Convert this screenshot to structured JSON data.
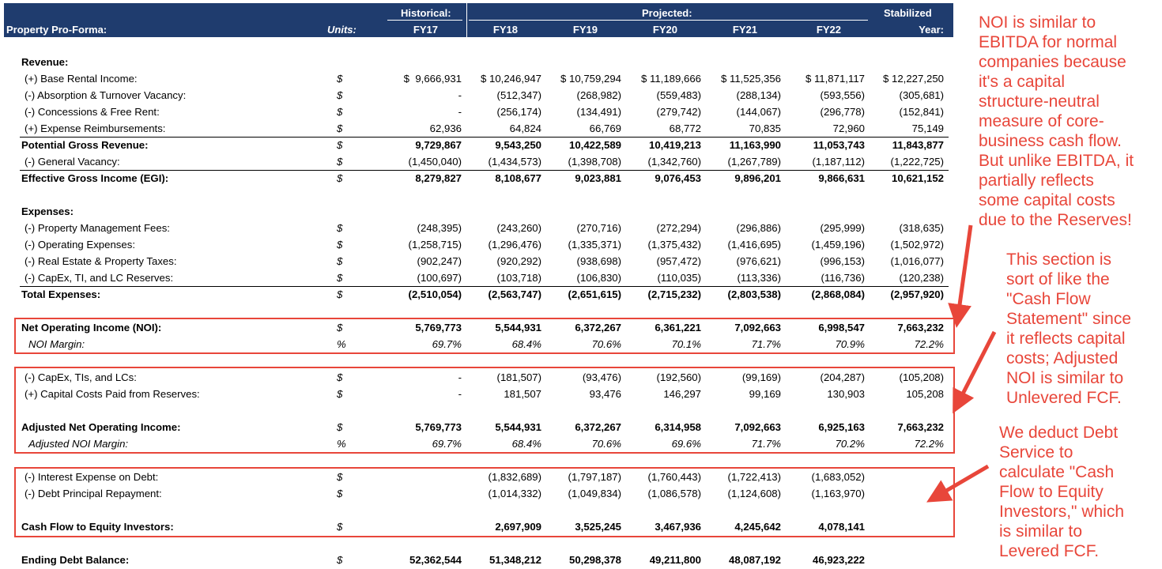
{
  "header": {
    "title": "Property Pro-Forma:",
    "units_label": "Units:",
    "historical_label": "Historical:",
    "projected_label": "Projected:",
    "stabilized_label": "Stabilized",
    "years": [
      "FY17",
      "FY18",
      "FY19",
      "FY20",
      "FY21",
      "FY22",
      "Year:"
    ]
  },
  "rows": [
    {
      "label": "Revenue:",
      "unit": "",
      "values": [],
      "style": "bold",
      "top": 68
    },
    {
      "label": "(+) Base Rental Income:",
      "unit": "$",
      "values": [
        "$  9,666,931",
        "$ 10,246,947",
        "$ 10,759,294",
        "$ 11,189,666",
        "$ 11,525,356",
        "$ 11,871,117",
        "$ 12,227,250"
      ],
      "style": "ind",
      "top": 89
    },
    {
      "label": "(-) Absorption & Turnover Vacancy:",
      "unit": "$",
      "values": [
        "-",
        "(512,347)",
        "(268,982)",
        "(559,483)",
        "(288,134)",
        "(593,556)",
        "(305,681)"
      ],
      "style": "ind",
      "top": 110
    },
    {
      "label": "(-) Concessions & Free Rent:",
      "unit": "$",
      "values": [
        "-",
        "(256,174)",
        "(134,491)",
        "(279,742)",
        "(144,067)",
        "(296,778)",
        "(152,841)"
      ],
      "style": "ind",
      "top": 131
    },
    {
      "label": "(+) Expense Reimbursements:",
      "unit": "$",
      "values": [
        "62,936",
        "64,824",
        "66,769",
        "68,772",
        "70,835",
        "72,960",
        "75,149"
      ],
      "style": "ind",
      "top": 152
    },
    {
      "label": "Potential Gross Revenue:",
      "unit": "$",
      "values": [
        "9,729,867",
        "9,543,250",
        "10,422,589",
        "10,419,213",
        "11,163,990",
        "11,053,743",
        "11,843,877"
      ],
      "style": "bold line",
      "top": 173
    },
    {
      "label": "(-) General Vacancy:",
      "unit": "$",
      "values": [
        "(1,450,040)",
        "(1,434,573)",
        "(1,398,708)",
        "(1,342,760)",
        "(1,267,789)",
        "(1,187,112)",
        "(1,222,725)"
      ],
      "style": "ind",
      "top": 194
    },
    {
      "label": "Effective Gross Income (EGI):",
      "unit": "$",
      "values": [
        "8,279,827",
        "8,108,677",
        "9,023,881",
        "9,076,453",
        "9,896,201",
        "9,866,631",
        "10,621,152"
      ],
      "style": "bold line",
      "top": 215
    },
    {
      "label": "Expenses:",
      "unit": "",
      "values": [],
      "style": "bold",
      "top": 257
    },
    {
      "label": "(-) Property Management Fees:",
      "unit": "$",
      "values": [
        "(248,395)",
        "(243,260)",
        "(270,716)",
        "(272,294)",
        "(296,886)",
        "(295,999)",
        "(318,635)"
      ],
      "style": "ind",
      "top": 278
    },
    {
      "label": "(-) Operating Expenses:",
      "unit": "$",
      "values": [
        "(1,258,715)",
        "(1,296,476)",
        "(1,335,371)",
        "(1,375,432)",
        "(1,416,695)",
        "(1,459,196)",
        "(1,502,972)"
      ],
      "style": "ind",
      "top": 299
    },
    {
      "label": "(-) Real Estate & Property Taxes:",
      "unit": "$",
      "values": [
        "(902,247)",
        "(920,292)",
        "(938,698)",
        "(957,472)",
        "(976,621)",
        "(996,153)",
        "(1,016,077)"
      ],
      "style": "ind",
      "top": 320
    },
    {
      "label": "(-) CapEx, TI, and LC Reserves:",
      "unit": "$",
      "values": [
        "(100,697)",
        "(103,718)",
        "(106,830)",
        "(110,035)",
        "(113,336)",
        "(116,736)",
        "(120,238)"
      ],
      "style": "ind",
      "top": 341
    },
    {
      "label": "Total Expenses:",
      "unit": "$",
      "values": [
        "(2,510,054)",
        "(2,563,747)",
        "(2,651,615)",
        "(2,715,232)",
        "(2,803,538)",
        "(2,868,084)",
        "(2,957,920)"
      ],
      "style": "bold line",
      "top": 362
    },
    {
      "label": "Net Operating Income (NOI):",
      "unit": "$",
      "values": [
        "5,769,773",
        "5,544,931",
        "6,372,267",
        "6,361,221",
        "7,092,663",
        "6,998,547",
        "7,663,232"
      ],
      "style": "bold",
      "top": 404
    },
    {
      "label": "NOI Margin:",
      "unit": "%",
      "values": [
        "69.7%",
        "68.4%",
        "70.6%",
        "70.1%",
        "71.7%",
        "70.9%",
        "72.2%"
      ],
      "style": "ital ind2",
      "top": 425
    },
    {
      "label": "(-) CapEx, TIs, and LCs:",
      "unit": "$",
      "values": [
        "-",
        "(181,507)",
        "(93,476)",
        "(192,560)",
        "(99,169)",
        "(204,287)",
        "(105,208)"
      ],
      "style": "ind",
      "top": 467
    },
    {
      "label": "(+) Capital Costs Paid from Reserves:",
      "unit": "$",
      "values": [
        "-",
        "181,507",
        "93,476",
        "146,297",
        "99,169",
        "130,903",
        "105,208"
      ],
      "style": "ind",
      "top": 488
    },
    {
      "label": "Adjusted Net Operating Income:",
      "unit": "$",
      "values": [
        "5,769,773",
        "5,544,931",
        "6,372,267",
        "6,314,958",
        "7,092,663",
        "6,925,163",
        "7,663,232"
      ],
      "style": "bold",
      "top": 530
    },
    {
      "label": "Adjusted NOI Margin:",
      "unit": "%",
      "values": [
        "69.7%",
        "68.4%",
        "70.6%",
        "69.6%",
        "71.7%",
        "70.2%",
        "72.2%"
      ],
      "style": "ital ind2",
      "top": 551
    },
    {
      "label": "(-) Interest Expense on Debt:",
      "unit": "$",
      "values": [
        "",
        "(1,832,689)",
        "(1,797,187)",
        "(1,760,443)",
        "(1,722,413)",
        "(1,683,052)",
        ""
      ],
      "style": "ind",
      "top": 593
    },
    {
      "label": "(-) Debt Principal Repayment:",
      "unit": "$",
      "values": [
        "",
        "(1,014,332)",
        "(1,049,834)",
        "(1,086,578)",
        "(1,124,608)",
        "(1,163,970)",
        ""
      ],
      "style": "ind",
      "top": 614
    },
    {
      "label": "Cash Flow to Equity Investors:",
      "unit": "$",
      "values": [
        "",
        "2,697,909",
        "3,525,245",
        "3,467,936",
        "4,245,642",
        "4,078,141",
        ""
      ],
      "style": "bold",
      "top": 656
    },
    {
      "label": "Ending Debt Balance:",
      "unit": "$",
      "values": [
        "52,362,544",
        "51,348,212",
        "50,298,378",
        "49,211,800",
        "48,087,192",
        "46,923,222",
        ""
      ],
      "style": "bold",
      "top": 698
    }
  ],
  "notes": {
    "noi": "NOI is similar to\nEBITDA for normal\ncompanies because\nit's a capital\nstructure-neutral\nmeasure of core-\nbusiness cash flow.\nBut unlike EBITDA, it\npartially reflects\nsome capital costs\ndue to the Reserves!",
    "section": "This section is\nsort of like the\n\"Cash Flow\nStatement\" since\nit reflects capital\ncosts; Adjusted\nNOI is similar to\nUnlevered FCF.",
    "debt": "We deduct Debt\nService to\ncalculate \"Cash\nFlow to Equity\nInvestors,\" which\nis similar to\nLevered FCF."
  },
  "colors": {
    "header_bg": "#1f3c6e",
    "annotation": "#e8463a"
  }
}
